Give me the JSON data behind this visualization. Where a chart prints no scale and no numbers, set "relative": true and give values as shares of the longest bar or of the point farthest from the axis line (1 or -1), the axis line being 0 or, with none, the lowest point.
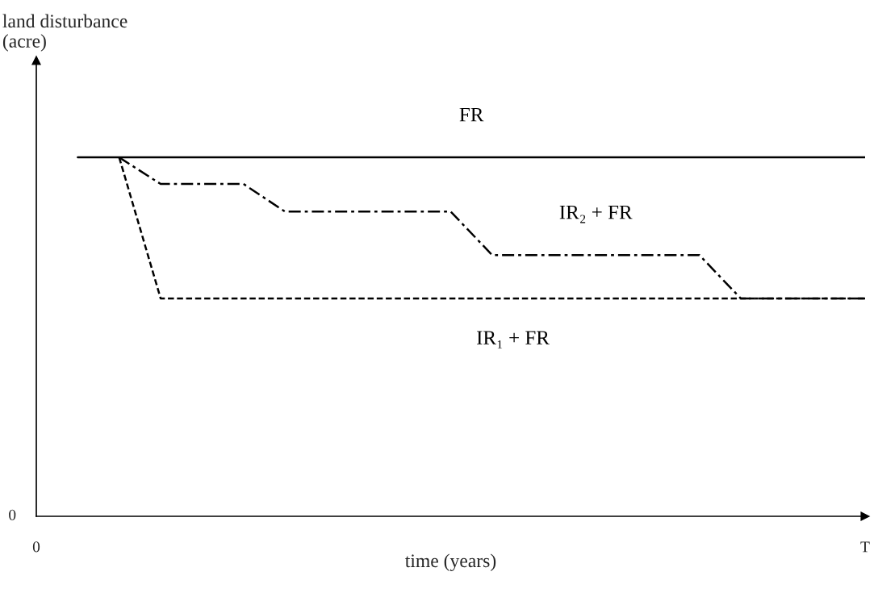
{
  "chart_data": {
    "type": "line",
    "relative": true,
    "xlabel": "time (years)",
    "categories": [
      null,
      null,
      null,
      null,
      null,
      null,
      null,
      null,
      null,
      null,
      null,
      null,
      null,
      null,
      null,
      null,
      null,
      null,
      null,
      null,
      null
    ],
    "series": [
      {
        "name": "FR",
        "color": "#000000",
        "line_style": "solid",
        "values": [
          null,
          1,
          1,
          1,
          1,
          1,
          1,
          1,
          1,
          1,
          1,
          1,
          1,
          1,
          1,
          1,
          1,
          1,
          1,
          1,
          1
        ]
      },
      {
        "name": "IR₂ + FR",
        "color": "#000000",
        "line_style": "dashdot",
        "values": [
          null,
          null,
          1,
          0.926,
          0.926,
          0.926,
          0.849,
          0.849,
          0.849,
          0.849,
          0.849,
          0.728,
          0.728,
          0.728,
          0.728,
          0.728,
          0.728,
          0.607,
          0.607,
          0.607,
          0.607
        ]
      },
      {
        "name": "IR₁ + FR",
        "color": "#000000",
        "line_style": "dashed",
        "values": [
          null,
          null,
          1,
          0.607,
          0.607,
          0.607,
          0.607,
          0.607,
          0.607,
          0.607,
          0.607,
          0.607,
          0.607,
          0.607,
          0.607,
          0.607,
          0.607,
          0.607,
          0.607,
          0.607,
          0.607
        ]
      }
    ],
    "annotations": [
      "land disturbance\n(acre)",
      "0",
      "0",
      "T"
    ],
    "legend": false,
    "marker": "none"
  }
}
